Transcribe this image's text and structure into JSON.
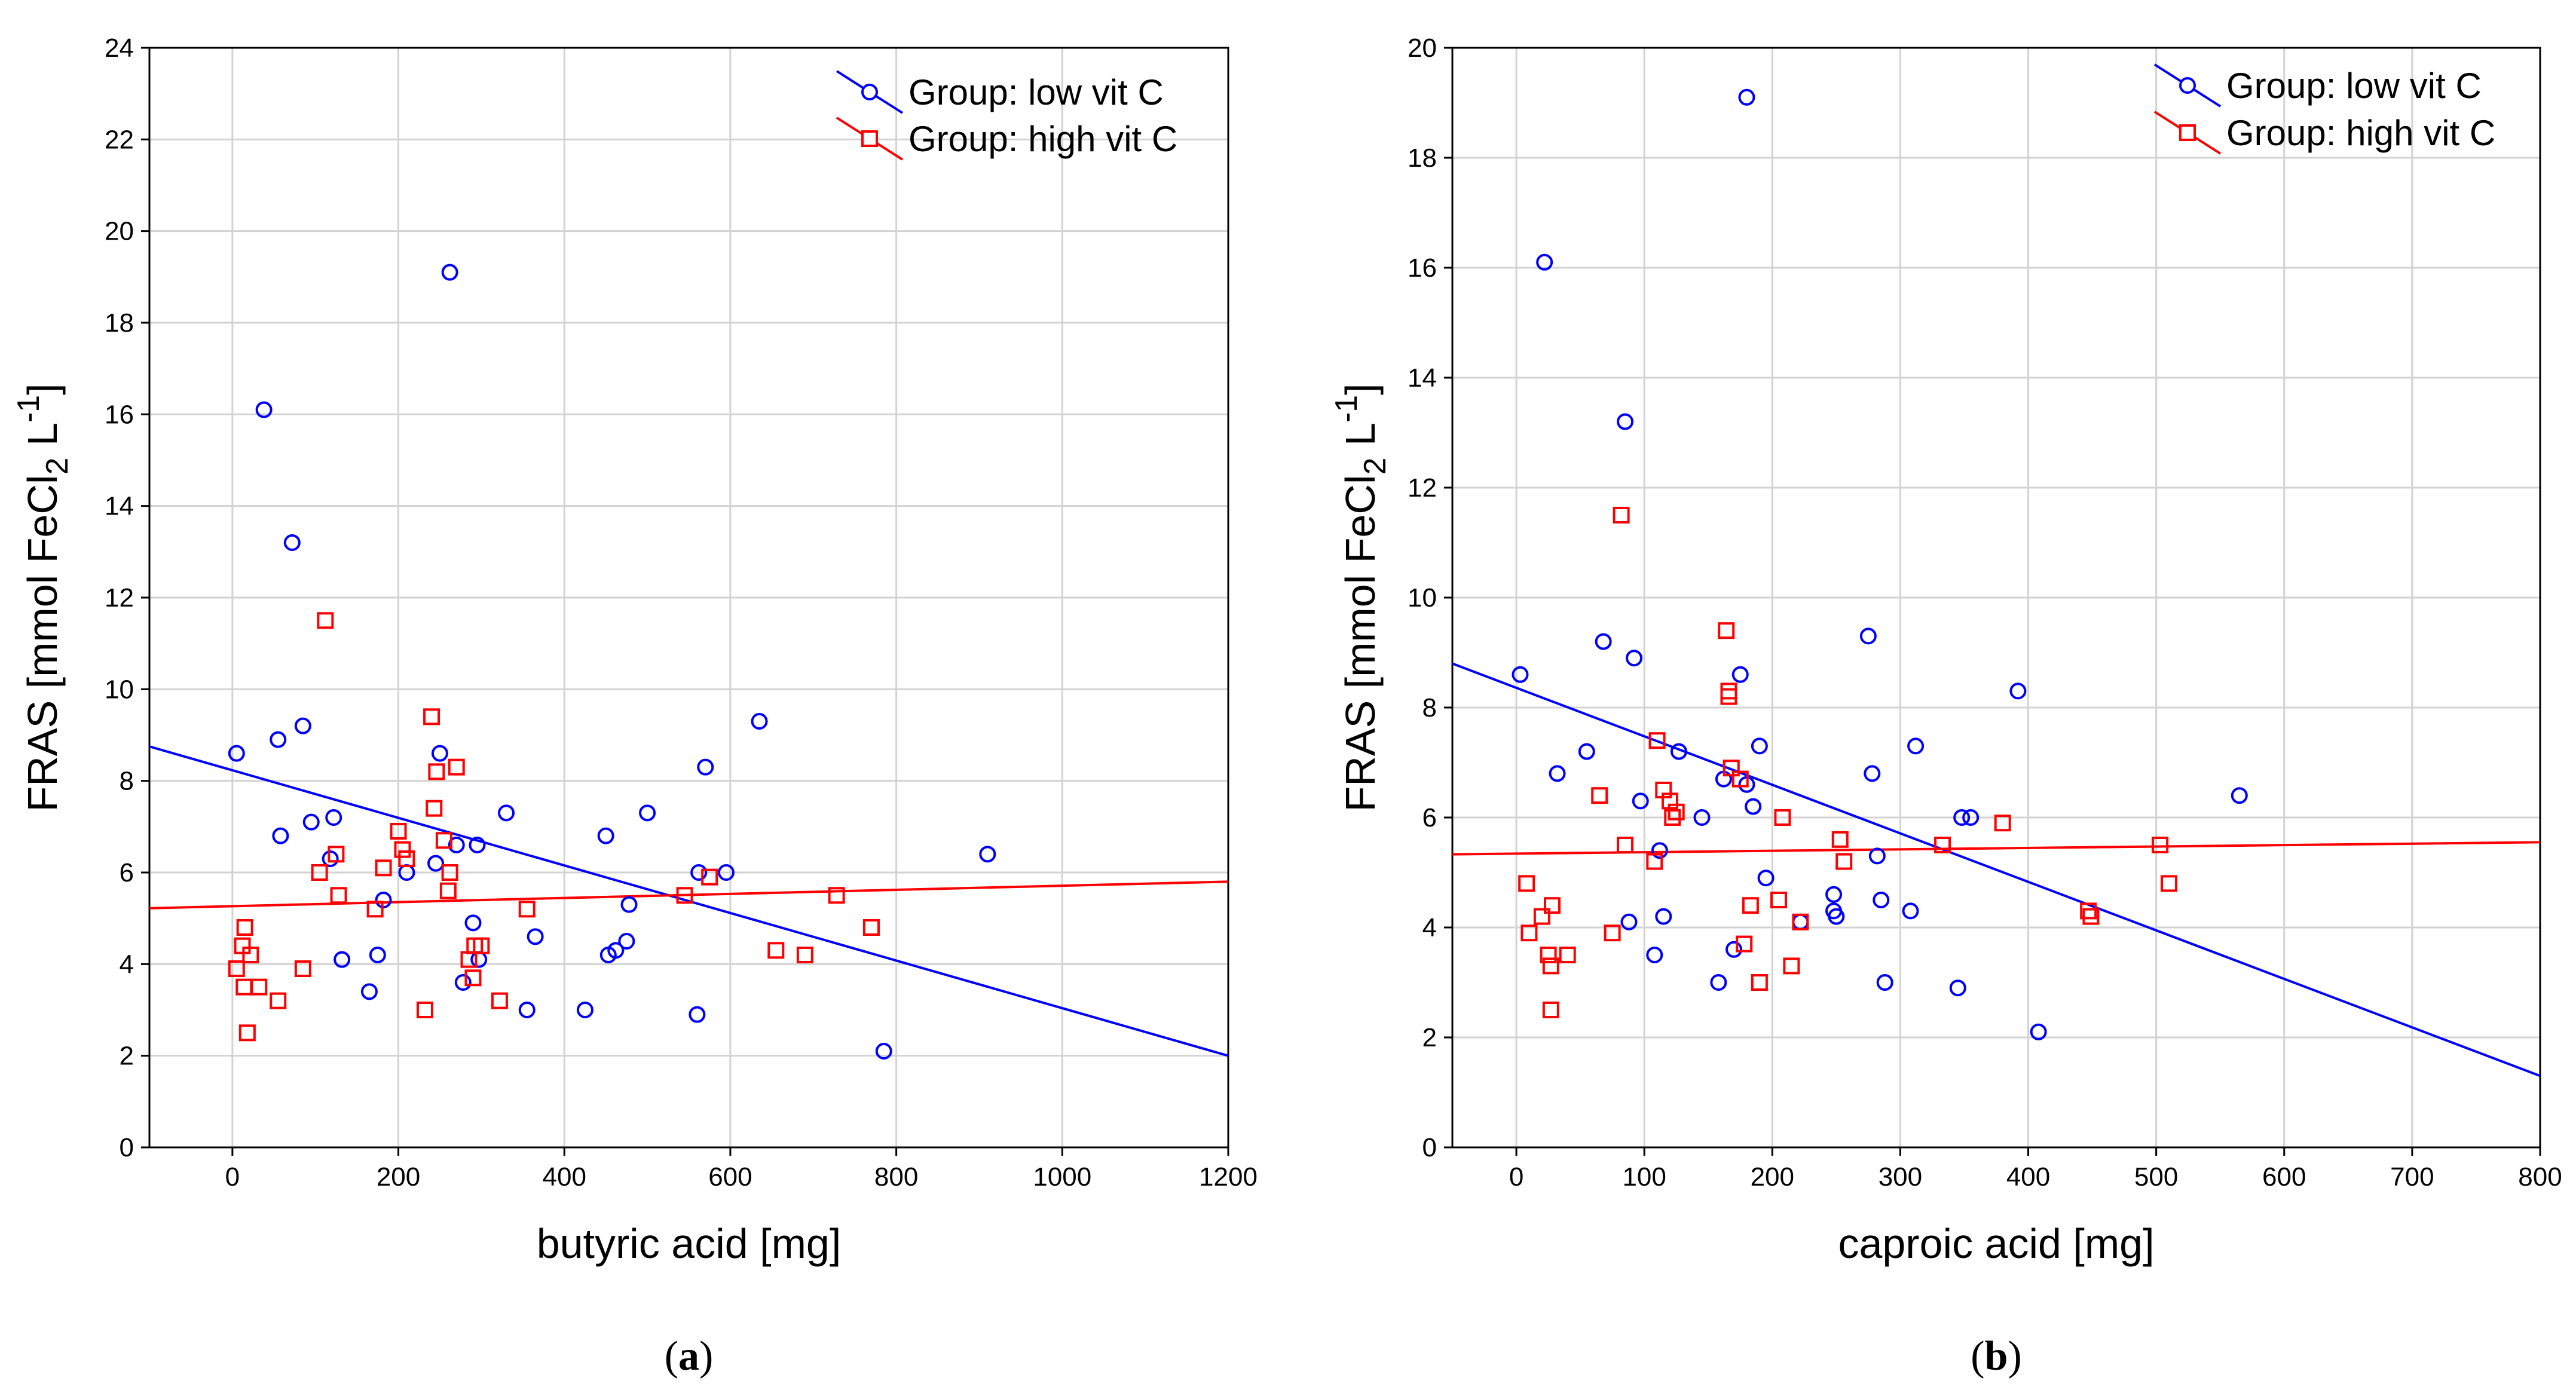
{
  "chart_data": [
    {
      "type": "scatter",
      "panel_label": "a",
      "xlabel": "butyric acid [mg]",
      "ylabel": "FRAS [mmol FeCl2 L-1]",
      "xlim": [
        -100,
        1200
      ],
      "ylim": [
        0,
        24
      ],
      "xticks": [
        0,
        200,
        400,
        600,
        800,
        1000,
        1200
      ],
      "yticks": [
        0,
        2,
        4,
        6,
        8,
        10,
        12,
        14,
        16,
        18,
        20,
        22,
        24
      ],
      "grid": true,
      "legend_position": "top-right",
      "series": [
        {
          "name": "Group: low vit C",
          "color": "#0000ff",
          "marker": "circle",
          "points": [
            [
              5,
              8.6
            ],
            [
              38,
              16.1
            ],
            [
              55,
              8.9
            ],
            [
              58,
              6.8
            ],
            [
              72,
              13.2
            ],
            [
              85,
              9.2
            ],
            [
              95,
              7.1
            ],
            [
              118,
              6.3
            ],
            [
              122,
              7.2
            ],
            [
              132,
              4.1
            ],
            [
              165,
              3.4
            ],
            [
              175,
              4.2
            ],
            [
              182,
              5.4
            ],
            [
              210,
              6.0
            ],
            [
              245,
              6.2
            ],
            [
              250,
              8.6
            ],
            [
              262,
              19.1
            ],
            [
              270,
              6.6
            ],
            [
              278,
              3.6
            ],
            [
              290,
              4.9
            ],
            [
              295,
              6.6
            ],
            [
              297,
              4.1
            ],
            [
              330,
              7.3
            ],
            [
              355,
              3.0
            ],
            [
              365,
              4.6
            ],
            [
              425,
              3.0
            ],
            [
              450,
              6.8
            ],
            [
              453,
              4.2
            ],
            [
              462,
              4.3
            ],
            [
              475,
              4.5
            ],
            [
              478,
              5.3
            ],
            [
              500,
              7.3
            ],
            [
              560,
              2.9
            ],
            [
              562,
              6.0
            ],
            [
              570,
              8.3
            ],
            [
              595,
              6.0
            ],
            [
              635,
              9.3
            ],
            [
              785,
              2.1
            ],
            [
              910,
              6.4
            ]
          ]
        },
        {
          "name": "Group: high vit C",
          "color": "#ff0000",
          "marker": "square",
          "points": [
            [
              5,
              3.9
            ],
            [
              12,
              4.4
            ],
            [
              15,
              4.8
            ],
            [
              14,
              3.5
            ],
            [
              18,
              2.5
            ],
            [
              22,
              4.2
            ],
            [
              32,
              3.5
            ],
            [
              55,
              3.2
            ],
            [
              85,
              3.9
            ],
            [
              105,
              6.0
            ],
            [
              112,
              11.5
            ],
            [
              125,
              6.4
            ],
            [
              128,
              5.5
            ],
            [
              172,
              5.2
            ],
            [
              182,
              6.1
            ],
            [
              200,
              6.9
            ],
            [
              205,
              6.5
            ],
            [
              210,
              6.3
            ],
            [
              232,
              3.0
            ],
            [
              240,
              9.4
            ],
            [
              243,
              7.4
            ],
            [
              246,
              8.2
            ],
            [
              255,
              6.7
            ],
            [
              260,
              5.6
            ],
            [
              262,
              6.0
            ],
            [
              270,
              8.3
            ],
            [
              285,
              4.1
            ],
            [
              290,
              3.7
            ],
            [
              292,
              4.4
            ],
            [
              300,
              4.4
            ],
            [
              322,
              3.2
            ],
            [
              355,
              5.2
            ],
            [
              545,
              5.5
            ],
            [
              575,
              5.9
            ],
            [
              655,
              4.3
            ],
            [
              690,
              4.2
            ],
            [
              728,
              5.5
            ],
            [
              770,
              4.8
            ]
          ]
        }
      ],
      "fit_lines": [
        {
          "series": "Group: low vit C",
          "color": "#0000ff",
          "x": [
            -100,
            1200
          ],
          "y": [
            8.75,
            2.0
          ]
        },
        {
          "series": "Group: high vit C",
          "color": "#ff0000",
          "x": [
            -100,
            1200
          ],
          "y": [
            5.22,
            5.8
          ]
        }
      ]
    },
    {
      "type": "scatter",
      "panel_label": "b",
      "xlabel": "caproic acid [mg]",
      "ylabel": "FRAS [mmol FeCl2 L-1]",
      "xlim": [
        -50,
        800
      ],
      "ylim": [
        0,
        20
      ],
      "xticks": [
        0,
        100,
        200,
        300,
        400,
        500,
        600,
        700,
        800
      ],
      "yticks": [
        0,
        2,
        4,
        6,
        8,
        10,
        12,
        14,
        16,
        18,
        20
      ],
      "grid": true,
      "legend_position": "top-right",
      "series": [
        {
          "name": "Group: low vit C",
          "color": "#0000ff",
          "marker": "circle",
          "points": [
            [
              3,
              8.6
            ],
            [
              22,
              16.1
            ],
            [
              32,
              6.8
            ],
            [
              55,
              7.2
            ],
            [
              68,
              9.2
            ],
            [
              85,
              13.2
            ],
            [
              88,
              4.1
            ],
            [
              92,
              8.9
            ],
            [
              97,
              6.3
            ],
            [
              108,
              3.5
            ],
            [
              112,
              5.4
            ],
            [
              115,
              4.2
            ],
            [
              127,
              7.2
            ],
            [
              145,
              6.0
            ],
            [
              158,
              3.0
            ],
            [
              162,
              6.7
            ],
            [
              170,
              3.6
            ],
            [
              175,
              8.6
            ],
            [
              180,
              6.6
            ],
            [
              180,
              19.1
            ],
            [
              185,
              6.2
            ],
            [
              190,
              7.3
            ],
            [
              195,
              4.9
            ],
            [
              222,
              4.1
            ],
            [
              248,
              4.6
            ],
            [
              248,
              4.3
            ],
            [
              250,
              4.2
            ],
            [
              275,
              9.3
            ],
            [
              278,
              6.8
            ],
            [
              282,
              5.3
            ],
            [
              285,
              4.5
            ],
            [
              288,
              3.0
            ],
            [
              308,
              4.3
            ],
            [
              312,
              7.3
            ],
            [
              345,
              2.9
            ],
            [
              348,
              6.0
            ],
            [
              355,
              6.0
            ],
            [
              392,
              8.3
            ],
            [
              408,
              2.1
            ],
            [
              565,
              6.4
            ]
          ]
        },
        {
          "name": "Group: high vit C",
          "color": "#ff0000",
          "marker": "square",
          "points": [
            [
              8,
              4.8
            ],
            [
              10,
              3.9
            ],
            [
              20,
              4.2
            ],
            [
              25,
              3.5
            ],
            [
              27,
              3.3
            ],
            [
              28,
              4.4
            ],
            [
              27,
              2.5
            ],
            [
              40,
              3.5
            ],
            [
              65,
              6.4
            ],
            [
              75,
              3.9
            ],
            [
              82,
              11.5
            ],
            [
              85,
              5.5
            ],
            [
              108,
              5.2
            ],
            [
              110,
              7.4
            ],
            [
              115,
              6.5
            ],
            [
              120,
              6.3
            ],
            [
              122,
              6.0
            ],
            [
              125,
              6.1
            ],
            [
              164,
              9.4
            ],
            [
              166,
              8.2
            ],
            [
              166,
              8.3
            ],
            [
              168,
              6.9
            ],
            [
              175,
              6.7
            ],
            [
              178,
              3.7
            ],
            [
              183,
              4.4
            ],
            [
              190,
              3.0
            ],
            [
              205,
              4.5
            ],
            [
              208,
              6.0
            ],
            [
              215,
              3.3
            ],
            [
              222,
              4.1
            ],
            [
              253,
              5.6
            ],
            [
              256,
              5.2
            ],
            [
              333,
              5.5
            ],
            [
              380,
              5.9
            ],
            [
              447,
              4.3
            ],
            [
              449,
              4.2
            ],
            [
              503,
              5.5
            ],
            [
              510,
              4.8
            ]
          ]
        }
      ],
      "fit_lines": [
        {
          "series": "Group: low vit C",
          "color": "#0000ff",
          "x": [
            -50,
            800
          ],
          "y": [
            8.8,
            1.3
          ]
        },
        {
          "series": "Group: high vit C",
          "color": "#ff0000",
          "x": [
            -50,
            800
          ],
          "y": [
            5.33,
            5.55
          ]
        }
      ]
    }
  ]
}
